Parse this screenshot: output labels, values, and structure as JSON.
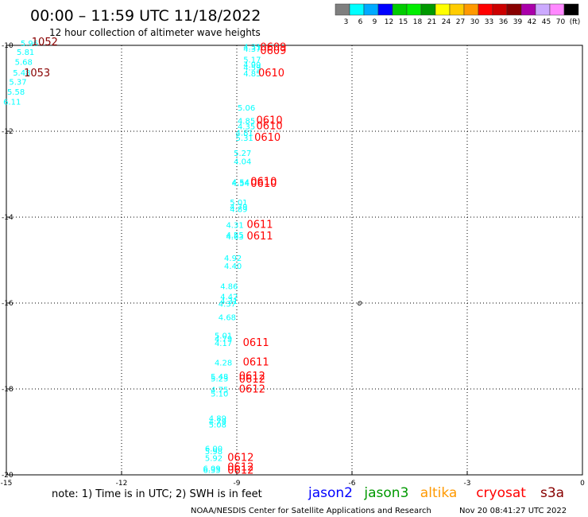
{
  "chart_data": {
    "type": "scatter",
    "title": "00:00 – 11:59 UTC 11/18/2022",
    "subtitle": "12 hour collection of altimeter wave heights",
    "xlim": [
      -15,
      0
    ],
    "ylim": [
      -20,
      -10
    ],
    "x_ticks": [
      -15,
      -12,
      -9,
      -6,
      -3,
      0
    ],
    "x_tick_labels": [
      "-15",
      "-12",
      "-9",
      "-6",
      "-3",
      "0"
    ],
    "y_ticks": [
      -10,
      -12,
      -14,
      -16,
      -18,
      -20
    ],
    "y_tick_labels": [
      "-10",
      "-12",
      "-14",
      "-16",
      "-18",
      "-20"
    ],
    "grid": true,
    "colorbar": {
      "colors": [
        "#7f7f7f",
        "#00ffff",
        "#00aaff",
        "#0000ff",
        "#00cc00",
        "#00ee00",
        "#009900",
        "#ffff00",
        "#ffcc00",
        "#ff9900",
        "#ff0000",
        "#cc0000",
        "#880000",
        "#aa00aa",
        "#ccaaff",
        "#ff88ff",
        "#000000"
      ],
      "labels": [
        "3",
        "6",
        "9",
        "12",
        "15",
        "18",
        "21",
        "24",
        "27",
        "30",
        "33",
        "36",
        "39",
        "42",
        "45",
        "70",
        "(ft)"
      ]
    },
    "swh_points": [
      {
        "x": -14.4,
        "y": -10.02,
        "label": "5.96",
        "color": "#00ffff"
      },
      {
        "x": -14.5,
        "y": -10.22,
        "label": "5.81",
        "color": "#00ffff"
      },
      {
        "x": -14.55,
        "y": -10.45,
        "label": "5.68",
        "color": "#00ffff"
      },
      {
        "x": -14.6,
        "y": -10.7,
        "label": "5.48",
        "color": "#00ffff"
      },
      {
        "x": -14.7,
        "y": -10.92,
        "label": "5.37",
        "color": "#00ffff"
      },
      {
        "x": -14.75,
        "y": -11.15,
        "label": "5.58",
        "color": "#00ffff"
      },
      {
        "x": -14.85,
        "y": -11.38,
        "label": "6.11",
        "color": "#00ffff"
      },
      {
        "x": -8.6,
        "y": -10.1,
        "label": "4.31",
        "color": "#00ffff"
      },
      {
        "x": -8.6,
        "y": -10.15,
        "label": "4.37",
        "color": "#00ffff"
      },
      {
        "x": -8.6,
        "y": -10.4,
        "label": "5.17",
        "color": "#00ffff"
      },
      {
        "x": -8.6,
        "y": -10.52,
        "label": "4.99",
        "color": "#00ffff"
      },
      {
        "x": -8.6,
        "y": -10.58,
        "label": "4.59",
        "color": "#00ffff"
      },
      {
        "x": -8.6,
        "y": -10.72,
        "label": "4.85",
        "color": "#00ffff"
      },
      {
        "x": -8.75,
        "y": -11.52,
        "label": "5.06",
        "color": "#00ffff"
      },
      {
        "x": -8.75,
        "y": -11.82,
        "label": "4.85",
        "color": "#00ffff"
      },
      {
        "x": -8.75,
        "y": -11.95,
        "label": "4.35",
        "color": "#00ffff"
      },
      {
        "x": -8.8,
        "y": -12.1,
        "label": "4.81",
        "color": "#00ffff"
      },
      {
        "x": -8.8,
        "y": -12.22,
        "label": "5.31",
        "color": "#00ffff"
      },
      {
        "x": -8.85,
        "y": -12.57,
        "label": "5.27",
        "color": "#00ffff"
      },
      {
        "x": -8.85,
        "y": -12.77,
        "label": "4.04",
        "color": "#00ffff"
      },
      {
        "x": -8.9,
        "y": -13.25,
        "label": "4.54",
        "color": "#00ffff"
      },
      {
        "x": -8.9,
        "y": -13.28,
        "label": "4.54",
        "color": "#00ffff"
      },
      {
        "x": -8.95,
        "y": -13.72,
        "label": "5.01",
        "color": "#00ffff"
      },
      {
        "x": -8.95,
        "y": -13.82,
        "label": "4.79",
        "color": "#00ffff"
      },
      {
        "x": -8.95,
        "y": -13.88,
        "label": "4.89",
        "color": "#00ffff"
      },
      {
        "x": -9.05,
        "y": -14.25,
        "label": "4.31",
        "color": "#00ffff"
      },
      {
        "x": -9.05,
        "y": -14.48,
        "label": "4.55",
        "color": "#00ffff"
      },
      {
        "x": -9.05,
        "y": -14.52,
        "label": "4.63",
        "color": "#00ffff"
      },
      {
        "x": -9.1,
        "y": -15.02,
        "label": "4.92",
        "color": "#00ffff"
      },
      {
        "x": -9.1,
        "y": -15.2,
        "label": "4.40",
        "color": "#00ffff"
      },
      {
        "x": -9.2,
        "y": -15.68,
        "label": "4.86",
        "color": "#00ffff"
      },
      {
        "x": -9.2,
        "y": -15.92,
        "label": "4.42",
        "color": "#00ffff"
      },
      {
        "x": -9.2,
        "y": -16.02,
        "label": "4.31",
        "color": "#00ffff"
      },
      {
        "x": -9.25,
        "y": -16.08,
        "label": "4.37",
        "color": "#00ffff"
      },
      {
        "x": -9.25,
        "y": -16.4,
        "label": "4.68",
        "color": "#00ffff"
      },
      {
        "x": -9.35,
        "y": -16.82,
        "label": "5.01",
        "color": "#00ffff"
      },
      {
        "x": -9.35,
        "y": -16.9,
        "label": "4.79",
        "color": "#00ffff"
      },
      {
        "x": -9.35,
        "y": -17.0,
        "label": "4.17",
        "color": "#00ffff"
      },
      {
        "x": -9.35,
        "y": -17.45,
        "label": "4.28",
        "color": "#00ffff"
      },
      {
        "x": -9.45,
        "y": -17.78,
        "label": "5.48",
        "color": "#00ffff"
      },
      {
        "x": -9.45,
        "y": -17.82,
        "label": "5.23",
        "color": "#00ffff"
      },
      {
        "x": -9.45,
        "y": -18.08,
        "label": "4.75",
        "color": "#00ffff"
      },
      {
        "x": -9.45,
        "y": -18.18,
        "label": "5.10",
        "color": "#00ffff"
      },
      {
        "x": -9.5,
        "y": -18.75,
        "label": "4.89",
        "color": "#00ffff"
      },
      {
        "x": -9.5,
        "y": -18.82,
        "label": "4.79",
        "color": "#00ffff"
      },
      {
        "x": -9.5,
        "y": -18.9,
        "label": "5.08",
        "color": "#00ffff"
      },
      {
        "x": -9.6,
        "y": -19.45,
        "label": "6.00",
        "color": "#00ffff"
      },
      {
        "x": -9.6,
        "y": -19.52,
        "label": "5.98",
        "color": "#00ffff"
      },
      {
        "x": -9.6,
        "y": -19.68,
        "label": "5.92",
        "color": "#00ffff"
      },
      {
        "x": -9.65,
        "y": -19.92,
        "label": "6.09",
        "color": "#00ffff"
      },
      {
        "x": -9.65,
        "y": -19.95,
        "label": "6.35",
        "color": "#00ffff"
      }
    ],
    "time_points": [
      {
        "x": -14.0,
        "y": -10.0,
        "label": "1052",
        "color": "#880000"
      },
      {
        "x": -14.2,
        "y": -10.72,
        "label": "1053",
        "color": "#880000"
      },
      {
        "x": -8.05,
        "y": -10.12,
        "label": "0609",
        "color": "#ff0000"
      },
      {
        "x": -8.05,
        "y": -10.2,
        "label": "0609",
        "color": "#ff0000"
      },
      {
        "x": -8.1,
        "y": -10.72,
        "label": "0610",
        "color": "#ff0000"
      },
      {
        "x": -8.15,
        "y": -11.82,
        "label": "0610",
        "color": "#ff0000"
      },
      {
        "x": -8.15,
        "y": -11.95,
        "label": "0610",
        "color": "#ff0000"
      },
      {
        "x": -8.2,
        "y": -12.22,
        "label": "0610",
        "color": "#ff0000"
      },
      {
        "x": -8.3,
        "y": -13.25,
        "label": "0610",
        "color": "#ff0000"
      },
      {
        "x": -8.3,
        "y": -13.3,
        "label": "0610",
        "color": "#ff0000"
      },
      {
        "x": -8.4,
        "y": -14.25,
        "label": "0611",
        "color": "#ff0000"
      },
      {
        "x": -8.4,
        "y": -14.52,
        "label": "0611",
        "color": "#ff0000"
      },
      {
        "x": -8.5,
        "y": -17.0,
        "label": "0611",
        "color": "#ff0000"
      },
      {
        "x": -8.5,
        "y": -17.45,
        "label": "0611",
        "color": "#ff0000"
      },
      {
        "x": -8.6,
        "y": -17.78,
        "label": "0612",
        "color": "#ff0000"
      },
      {
        "x": -8.6,
        "y": -17.85,
        "label": "0612",
        "color": "#ff0000"
      },
      {
        "x": -8.6,
        "y": -18.08,
        "label": "0612",
        "color": "#ff0000"
      },
      {
        "x": -8.9,
        "y": -19.68,
        "label": "0612",
        "color": "#ff0000"
      },
      {
        "x": -8.9,
        "y": -19.9,
        "label": "0612",
        "color": "#ff0000"
      },
      {
        "x": -8.9,
        "y": -19.97,
        "label": "0612",
        "color": "#ff0000"
      }
    ],
    "island_marker": {
      "x": -5.8,
      "y": -16.0,
      "label": "o"
    },
    "note": "note:  1) Time is in UTC;  2) SWH is in feet",
    "satellites": [
      {
        "name": "jason2",
        "color": "#0000ff"
      },
      {
        "name": "jason3",
        "color": "#009900"
      },
      {
        "name": "altika",
        "color": "#ff9900"
      },
      {
        "name": "cryosat",
        "color": "#ff0000"
      },
      {
        "name": "s3a",
        "color": "#880000"
      }
    ],
    "credit": "NOAA/NESDIS Center for Satellite Applications and Research",
    "generated": "Nov 20 08:41:27 UTC 2022"
  }
}
